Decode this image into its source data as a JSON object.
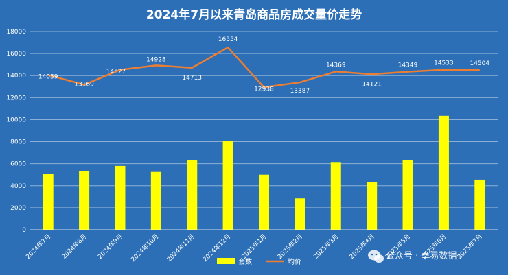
{
  "chart_data": {
    "type": "bar",
    "title": "2024年7月以来青岛商品房成交量价走势",
    "categories": [
      "2024年7月",
      "2024年8月",
      "2024年9月",
      "2024年10月",
      "2024年11月",
      "2024年12月",
      "2025年1月",
      "2025年2月",
      "2025年3月",
      "2025年4月",
      "2025年5月",
      "2025年6月",
      "2025年7月"
    ],
    "series": [
      {
        "name": "套数",
        "type": "bar",
        "values": [
          5100,
          5350,
          5800,
          5250,
          6300,
          8050,
          5000,
          2850,
          6150,
          4350,
          6350,
          10350,
          4550
        ]
      },
      {
        "name": "均价",
        "type": "line",
        "values": [
          14059,
          13169,
          14527,
          14928,
          14713,
          16554,
          12938,
          13387,
          14369,
          14121,
          14349,
          14533,
          14504
        ],
        "labels": [
          "14059",
          "13169",
          "14527",
          "14928",
          "14713",
          "16554",
          "12938",
          "13387",
          "14369",
          "14121",
          "14349",
          "14533",
          "14504"
        ]
      }
    ],
    "ylim": [
      0,
      18000
    ],
    "yticks": [
      "0",
      "2000",
      "4000",
      "6000",
      "8000",
      "10000",
      "12000",
      "14000",
      "16000",
      "18000"
    ],
    "grid": true,
    "legend": "bottom-center",
    "colors": {
      "background": "#2d6fb6",
      "bar": "#ffff00",
      "line": "#ed7d31",
      "text": "#ffffff",
      "grid": "#ffffff"
    }
  },
  "watermark": {
    "text": "公众号 · 卓易数据",
    "icon": "wechat-icon"
  }
}
